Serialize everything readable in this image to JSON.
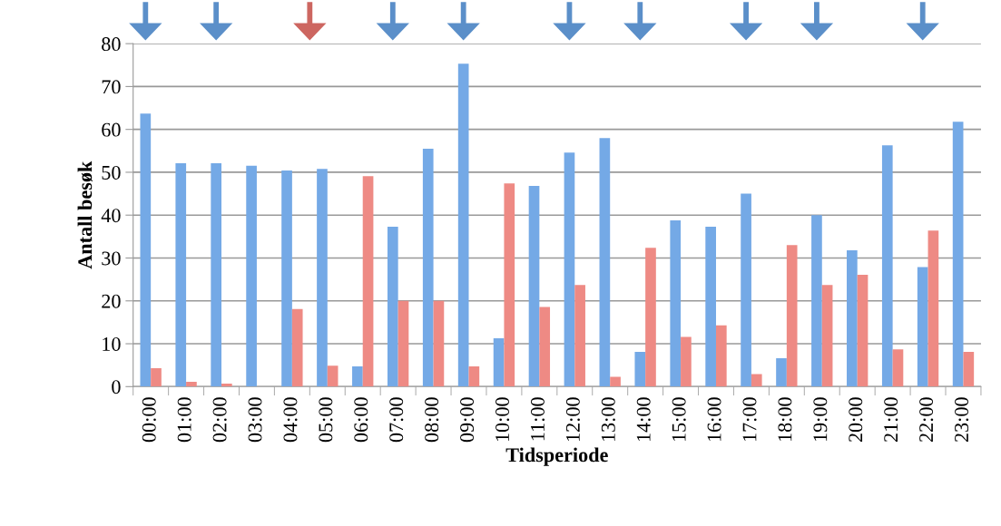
{
  "chart_data": {
    "type": "bar",
    "xlabel": "Tidsperiode",
    "ylabel": "Antall besøk",
    "categories": [
      "00:00",
      "01:00",
      "02:00",
      "03:00",
      "04:00",
      "05:00",
      "06:00",
      "07:00",
      "08:00",
      "09:00",
      "10:00",
      "11:00",
      "12:00",
      "13:00",
      "14:00",
      "15:00",
      "16:00",
      "17:00",
      "18:00",
      "19:00",
      "20:00",
      "21:00",
      "22:00",
      "23:00"
    ],
    "series": [
      {
        "color": "#74a9e6",
        "values": [
          63.7,
          52.1,
          52.1,
          51.5,
          50.4,
          50.8,
          4.7,
          37.3,
          55.5,
          75.3,
          11.3,
          46.8,
          54.6,
          58.0,
          8.1,
          38.8,
          37.3,
          45.0,
          6.6,
          40.0,
          31.8,
          56.3,
          27.9,
          61.8
        ]
      },
      {
        "color": "#ee8a84",
        "values": [
          4.3,
          1.1,
          0.7,
          0,
          18.1,
          4.9,
          49.1,
          20,
          20,
          4.7,
          47.4,
          18.6,
          23.7,
          2.3,
          32.4,
          11.6,
          14.3,
          2.9,
          33.0,
          23.7,
          26.1,
          8.7,
          36.4,
          8.1
        ]
      }
    ],
    "ylim": [
      0,
      80
    ],
    "yticks": [
      0,
      10,
      20,
      30,
      40,
      50,
      60,
      70,
      80
    ],
    "grid": "y",
    "legend": false
  }
}
